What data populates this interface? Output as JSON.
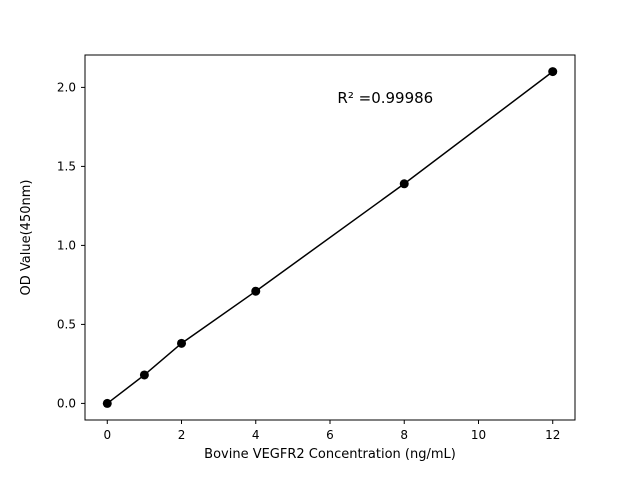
{
  "chart_data": {
    "type": "scatter",
    "title": "",
    "xlabel": "Bovine VEGFR2 Concentration (ng/mL)",
    "ylabel": "OD Value(450nm)",
    "x": [
      0,
      1,
      2,
      4,
      8,
      12
    ],
    "y": [
      0.0,
      0.18,
      0.38,
      0.71,
      1.39,
      2.1
    ],
    "fit_line": {
      "x1": 0,
      "y1": 0.0,
      "x2": 12,
      "y2": 2.1
    },
    "annotation": {
      "text": "R² =0.99986",
      "x": 6.2,
      "y": 1.9
    },
    "xticks": [
      0,
      2,
      4,
      6,
      8,
      10,
      12
    ],
    "xtick_labels": [
      "0",
      "2",
      "4",
      "6",
      "8",
      "10",
      "12"
    ],
    "yticks": [
      0.0,
      0.5,
      1.0,
      1.5,
      2.0
    ],
    "ytick_labels": [
      "0.0",
      "0.5",
      "1.0",
      "1.5",
      "2.0"
    ],
    "xlim": [
      -0.6,
      12.6
    ],
    "ylim": [
      -0.105,
      2.205
    ],
    "grid": false,
    "legend": "none",
    "marker_color": "#000000",
    "marker_radius": 4.5,
    "line_color": "#000000",
    "line_width": 1.5,
    "spine_color": "#000000",
    "background": "#ffffff"
  }
}
